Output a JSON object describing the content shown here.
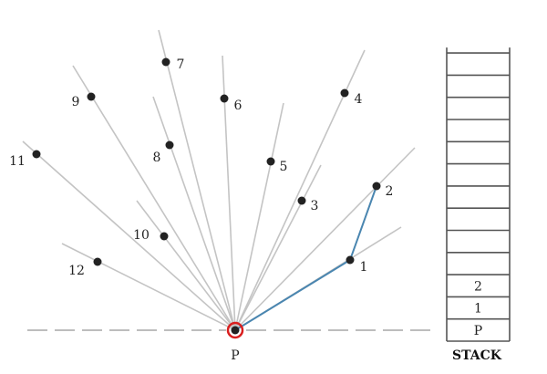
{
  "diagram": {
    "pivot_label": "P",
    "points": [
      {
        "label": "1"
      },
      {
        "label": "2"
      },
      {
        "label": "3"
      },
      {
        "label": "4"
      },
      {
        "label": "5"
      },
      {
        "label": "6"
      },
      {
        "label": "7"
      },
      {
        "label": "8"
      },
      {
        "label": "9"
      },
      {
        "label": "10"
      },
      {
        "label": "11"
      },
      {
        "label": "12"
      }
    ],
    "hull_path": [
      "P",
      "1",
      "2"
    ]
  },
  "stack": {
    "title": "STACK",
    "contents": [
      "P",
      "1",
      "2"
    ],
    "capacity": 13
  },
  "colors": {
    "ray": "#c4c4c4",
    "baseline": "#bdbdbd",
    "point": "#222222",
    "hull": "#4a86b0",
    "pivot_ring": "#d91f1f"
  }
}
